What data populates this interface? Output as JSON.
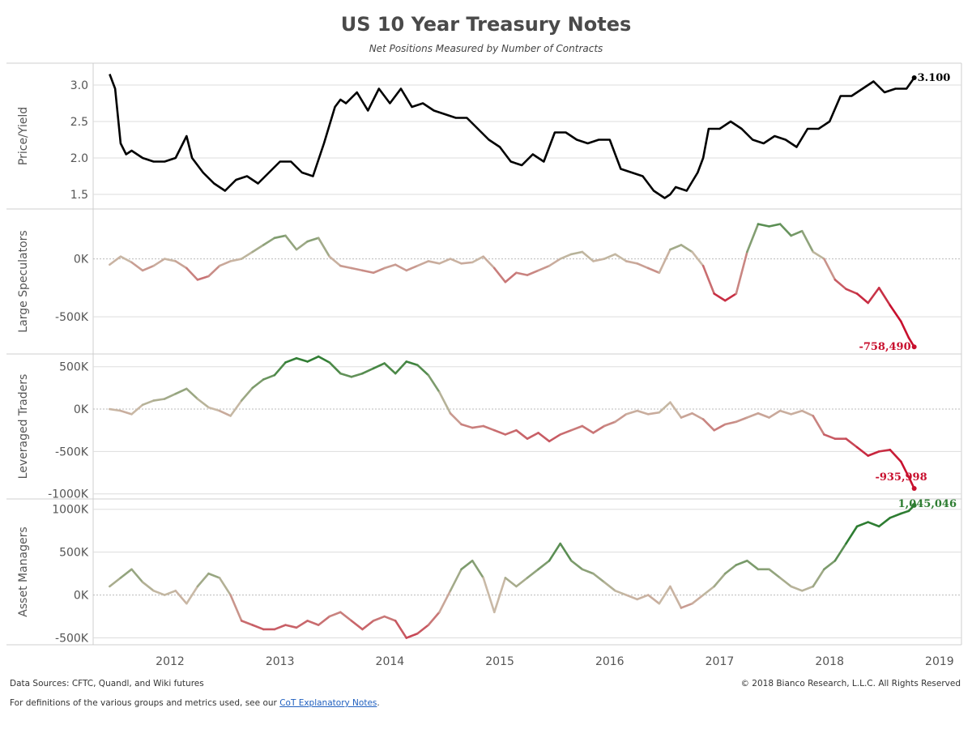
{
  "title": "US 10 Year Treasury Notes",
  "subtitle": "Net Positions Measured by Number of Contracts",
  "footer": {
    "sources": "Data Sources: CFTC, Quandl, and Wiki futures",
    "copyright": "© 2018 Bianco Research, L.L.C. All Rights Reserved",
    "definitions_prefix": "For definitions of the various groups and metrics used, see our ",
    "definitions_link": "CoT Explanatory Notes",
    "definitions_suffix": "."
  },
  "colors": {
    "positive": "#2e7d32",
    "neutral": "#c9b9a6",
    "negative": "#c8102e",
    "price": "#000000",
    "grid": "#dddddd"
  },
  "chart_data": {
    "type": "line",
    "x_axis": {
      "ticks": [
        "2012",
        "2013",
        "2014",
        "2015",
        "2016",
        "2017",
        "2018",
        "2019"
      ],
      "range": [
        2011.3,
        2019.2
      ]
    },
    "panels": [
      {
        "id": "price",
        "ylabel": "Price/Yield",
        "ylim": [
          1.3,
          3.3
        ],
        "yticks": [
          {
            "v": 1.5,
            "label": "1.5"
          },
          {
            "v": 2.0,
            "label": "2.0"
          },
          {
            "v": 2.5,
            "label": "2.5"
          },
          {
            "v": 3.0,
            "label": "3.0"
          }
        ],
        "color_mode": "solid",
        "last_label": "3.100",
        "x": [
          2011.45,
          2011.5,
          2011.55,
          2011.6,
          2011.65,
          2011.75,
          2011.85,
          2011.95,
          2012.05,
          2012.15,
          2012.2,
          2012.3,
          2012.4,
          2012.5,
          2012.6,
          2012.7,
          2012.8,
          2012.9,
          2013.0,
          2013.1,
          2013.2,
          2013.3,
          2013.4,
          2013.5,
          2013.55,
          2013.6,
          2013.7,
          2013.8,
          2013.9,
          2014.0,
          2014.1,
          2014.2,
          2014.3,
          2014.4,
          2014.5,
          2014.6,
          2014.7,
          2014.8,
          2014.9,
          2015.0,
          2015.1,
          2015.2,
          2015.3,
          2015.4,
          2015.5,
          2015.6,
          2015.7,
          2015.8,
          2015.9,
          2016.0,
          2016.1,
          2016.2,
          2016.3,
          2016.4,
          2016.5,
          2016.55,
          2016.6,
          2016.7,
          2016.8,
          2016.85,
          2016.9,
          2017.0,
          2017.1,
          2017.2,
          2017.3,
          2017.4,
          2017.5,
          2017.6,
          2017.7,
          2017.8,
          2017.9,
          2018.0,
          2018.1,
          2018.2,
          2018.3,
          2018.4,
          2018.5,
          2018.6,
          2018.7,
          2018.77
        ],
        "values": [
          3.15,
          2.95,
          2.2,
          2.05,
          2.1,
          2.0,
          1.95,
          1.95,
          2.0,
          2.3,
          2.0,
          1.8,
          1.65,
          1.55,
          1.7,
          1.75,
          1.65,
          1.8,
          1.95,
          1.95,
          1.8,
          1.75,
          2.2,
          2.7,
          2.8,
          2.75,
          2.9,
          2.65,
          2.95,
          2.75,
          2.95,
          2.7,
          2.75,
          2.65,
          2.6,
          2.55,
          2.55,
          2.4,
          2.25,
          2.15,
          1.95,
          1.9,
          2.05,
          1.95,
          2.35,
          2.35,
          2.25,
          2.2,
          2.25,
          2.25,
          1.85,
          1.8,
          1.75,
          1.55,
          1.45,
          1.5,
          1.6,
          1.55,
          1.8,
          2.0,
          2.4,
          2.4,
          2.5,
          2.4,
          2.25,
          2.2,
          2.3,
          2.25,
          2.15,
          2.4,
          2.4,
          2.5,
          2.85,
          2.85,
          2.95,
          3.05,
          2.9,
          2.95,
          2.95,
          3.1
        ]
      },
      {
        "id": "large_speculators",
        "ylabel": "Large Speculators",
        "ylim": [
          -820000,
          430000
        ],
        "yticks": [
          {
            "v": -500000,
            "label": "-500K"
          },
          {
            "v": 0,
            "label": "0K"
          }
        ],
        "color_mode": "diverging",
        "scale": 400000,
        "last_label": "-758,490",
        "x": [
          2011.45,
          2011.55,
          2011.65,
          2011.75,
          2011.85,
          2011.95,
          2012.05,
          2012.15,
          2012.25,
          2012.35,
          2012.45,
          2012.55,
          2012.65,
          2012.75,
          2012.85,
          2012.95,
          2013.05,
          2013.15,
          2013.25,
          2013.35,
          2013.45,
          2013.55,
          2013.65,
          2013.75,
          2013.85,
          2013.95,
          2014.05,
          2014.15,
          2014.25,
          2014.35,
          2014.45,
          2014.55,
          2014.65,
          2014.75,
          2014.85,
          2014.95,
          2015.05,
          2015.15,
          2015.25,
          2015.35,
          2015.45,
          2015.55,
          2015.65,
          2015.75,
          2015.85,
          2015.95,
          2016.05,
          2016.15,
          2016.25,
          2016.35,
          2016.45,
          2016.55,
          2016.65,
          2016.75,
          2016.85,
          2016.95,
          2017.05,
          2017.15,
          2017.25,
          2017.35,
          2017.45,
          2017.55,
          2017.65,
          2017.75,
          2017.85,
          2017.95,
          2018.05,
          2018.15,
          2018.25,
          2018.35,
          2018.45,
          2018.55,
          2018.65,
          2018.72,
          2018.77
        ],
        "values": [
          -50000,
          20000,
          -30000,
          -100000,
          -60000,
          0,
          -20000,
          -80000,
          -180000,
          -150000,
          -60000,
          -20000,
          0,
          60000,
          120000,
          180000,
          200000,
          80000,
          150000,
          180000,
          20000,
          -60000,
          -80000,
          -100000,
          -120000,
          -80000,
          -50000,
          -100000,
          -60000,
          -20000,
          -40000,
          0,
          -40000,
          -30000,
          20000,
          -80000,
          -200000,
          -120000,
          -140000,
          -100000,
          -60000,
          0,
          40000,
          60000,
          -20000,
          0,
          40000,
          -20000,
          -40000,
          -80000,
          -120000,
          80000,
          120000,
          60000,
          -60000,
          -300000,
          -360000,
          -300000,
          60000,
          300000,
          280000,
          300000,
          200000,
          240000,
          60000,
          0,
          -180000,
          -260000,
          -300000,
          -380000,
          -250000,
          -400000,
          -540000,
          -680000,
          -758490
        ]
      },
      {
        "id": "leveraged_traders",
        "ylabel": "Leveraged Traders",
        "ylim": [
          -1060000,
          650000
        ],
        "yticks": [
          {
            "v": -1000000,
            "label": "-1000K"
          },
          {
            "v": -500000,
            "label": "-500K"
          },
          {
            "v": 0,
            "label": "0K"
          },
          {
            "v": 500000,
            "label": "500K"
          }
        ],
        "color_mode": "diverging",
        "scale": 600000,
        "last_label": "-935,998",
        "x": [
          2011.45,
          2011.55,
          2011.65,
          2011.75,
          2011.85,
          2011.95,
          2012.05,
          2012.15,
          2012.25,
          2012.35,
          2012.45,
          2012.55,
          2012.65,
          2012.75,
          2012.85,
          2012.95,
          2013.05,
          2013.15,
          2013.25,
          2013.35,
          2013.45,
          2013.55,
          2013.65,
          2013.75,
          2013.85,
          2013.95,
          2014.05,
          2014.15,
          2014.25,
          2014.35,
          2014.45,
          2014.55,
          2014.65,
          2014.75,
          2014.85,
          2014.95,
          2015.05,
          2015.15,
          2015.25,
          2015.35,
          2015.45,
          2015.55,
          2015.65,
          2015.75,
          2015.85,
          2015.95,
          2016.05,
          2016.15,
          2016.25,
          2016.35,
          2016.45,
          2016.55,
          2016.65,
          2016.75,
          2016.85,
          2016.95,
          2017.05,
          2017.15,
          2017.25,
          2017.35,
          2017.45,
          2017.55,
          2017.65,
          2017.75,
          2017.85,
          2017.95,
          2018.05,
          2018.15,
          2018.25,
          2018.35,
          2018.45,
          2018.55,
          2018.65,
          2018.72,
          2018.77
        ],
        "values": [
          0,
          -20000,
          -60000,
          50000,
          100000,
          120000,
          180000,
          240000,
          120000,
          20000,
          -20000,
          -80000,
          100000,
          250000,
          350000,
          400000,
          550000,
          600000,
          560000,
          620000,
          550000,
          420000,
          380000,
          420000,
          480000,
          540000,
          420000,
          560000,
          520000,
          400000,
          200000,
          -50000,
          -180000,
          -220000,
          -200000,
          -250000,
          -300000,
          -250000,
          -350000,
          -280000,
          -380000,
          -300000,
          -250000,
          -200000,
          -280000,
          -200000,
          -150000,
          -60000,
          -20000,
          -60000,
          -40000,
          80000,
          -100000,
          -50000,
          -120000,
          -250000,
          -180000,
          -150000,
          -100000,
          -50000,
          -100000,
          -20000,
          -60000,
          -20000,
          -80000,
          -300000,
          -350000,
          -350000,
          -450000,
          -550000,
          -500000,
          -480000,
          -620000,
          -800000,
          -935998
        ]
      },
      {
        "id": "asset_managers",
        "ylabel": "Asset Managers",
        "ylim": [
          -580000,
          1120000
        ],
        "yticks": [
          {
            "v": -500000,
            "label": "-500K"
          },
          {
            "v": 0,
            "label": "0K"
          },
          {
            "v": 500000,
            "label": "500K"
          },
          {
            "v": 1000000,
            "label": "1000K"
          }
        ],
        "color_mode": "diverging",
        "scale": 700000,
        "last_label": "1,045,046",
        "x": [
          2011.45,
          2011.55,
          2011.65,
          2011.75,
          2011.85,
          2011.95,
          2012.05,
          2012.15,
          2012.25,
          2012.35,
          2012.45,
          2012.55,
          2012.65,
          2012.75,
          2012.85,
          2012.95,
          2013.05,
          2013.15,
          2013.25,
          2013.35,
          2013.45,
          2013.55,
          2013.65,
          2013.75,
          2013.85,
          2013.95,
          2014.05,
          2014.15,
          2014.25,
          2014.35,
          2014.45,
          2014.55,
          2014.65,
          2014.75,
          2014.85,
          2014.95,
          2015.05,
          2015.15,
          2015.25,
          2015.35,
          2015.45,
          2015.55,
          2015.65,
          2015.75,
          2015.85,
          2015.95,
          2016.05,
          2016.15,
          2016.25,
          2016.35,
          2016.45,
          2016.55,
          2016.65,
          2016.75,
          2016.85,
          2016.95,
          2017.05,
          2017.15,
          2017.25,
          2017.35,
          2017.45,
          2017.55,
          2017.65,
          2017.75,
          2017.85,
          2017.95,
          2018.05,
          2018.15,
          2018.25,
          2018.35,
          2018.45,
          2018.55,
          2018.65,
          2018.72,
          2018.77
        ],
        "values": [
          100000,
          200000,
          300000,
          150000,
          50000,
          0,
          50000,
          -100000,
          100000,
          250000,
          200000,
          0,
          -300000,
          -350000,
          -400000,
          -400000,
          -350000,
          -380000,
          -300000,
          -350000,
          -250000,
          -200000,
          -300000,
          -400000,
          -300000,
          -250000,
          -300000,
          -500000,
          -450000,
          -350000,
          -200000,
          50000,
          300000,
          400000,
          200000,
          -200000,
          200000,
          100000,
          200000,
          300000,
          400000,
          600000,
          400000,
          300000,
          250000,
          150000,
          50000,
          0,
          -50000,
          0,
          -100000,
          100000,
          -150000,
          -100000,
          0,
          100000,
          250000,
          350000,
          400000,
          300000,
          300000,
          200000,
          100000,
          50000,
          100000,
          300000,
          400000,
          600000,
          800000,
          850000,
          800000,
          900000,
          950000,
          980000,
          1045046
        ]
      }
    ]
  }
}
